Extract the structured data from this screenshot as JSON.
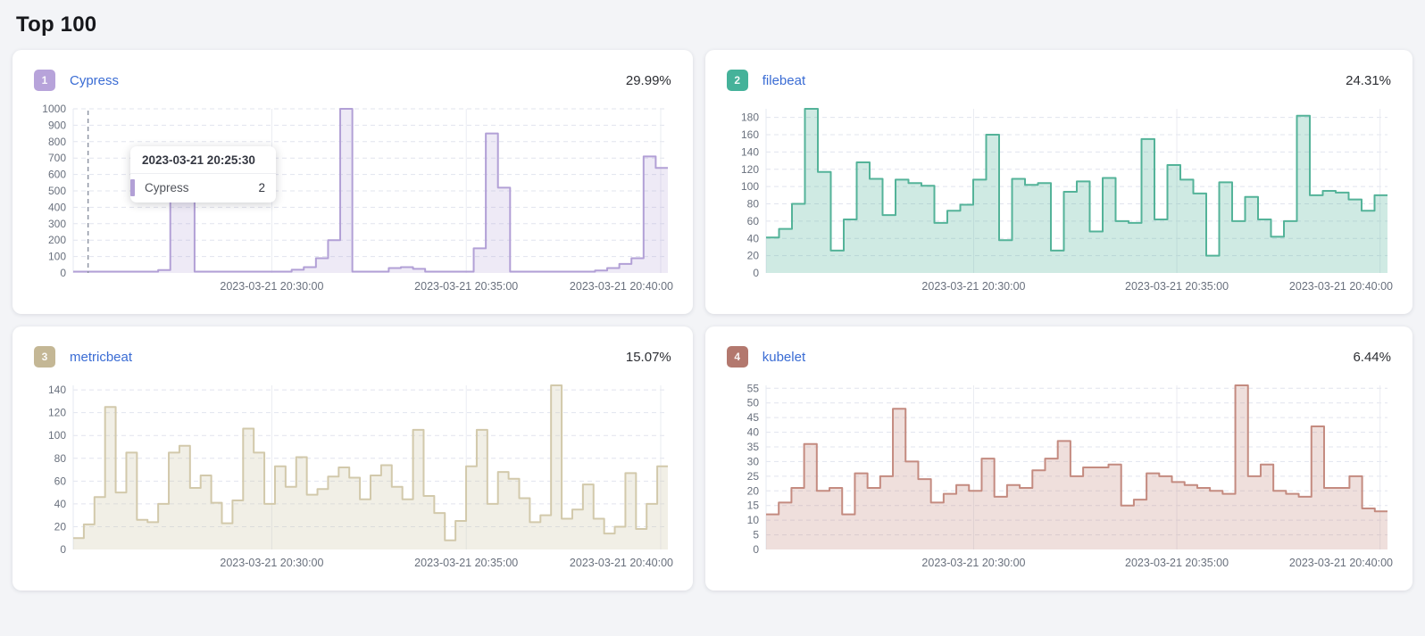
{
  "page": {
    "title": "Top 100",
    "background": "#f3f4f7"
  },
  "x_axis": {
    "labels": [
      "2023-03-21 20:30:00",
      "2023-03-21 20:35:00",
      "2023-03-21 20:40:00"
    ],
    "fractions": [
      0.334,
      0.661,
      0.988
    ],
    "label_color": "#69707d"
  },
  "chart_data": [
    {
      "type": "area",
      "rank": "1",
      "name": "Cypress",
      "percent": "29.99%",
      "badge_color": "#b7a3da",
      "line_color": "#b2a0d6",
      "fill_color": "rgba(178,160,214,0.22)",
      "ylim": [
        0,
        1000
      ],
      "y_ticks": [
        0,
        100,
        200,
        300,
        400,
        500,
        600,
        700,
        800,
        900,
        1000
      ],
      "x_tick_labels": [
        "2023-03-21 20:30:00",
        "2023-03-21 20:35:00",
        "2023-03-21 20:40:00"
      ],
      "values": [
        8,
        8,
        8,
        8,
        8,
        8,
        8,
        18,
        620,
        620,
        8,
        8,
        8,
        8,
        8,
        8,
        8,
        8,
        20,
        35,
        90,
        200,
        1000,
        8,
        8,
        8,
        30,
        35,
        25,
        8,
        8,
        8,
        8,
        150,
        850,
        520,
        8,
        8,
        8,
        8,
        8,
        8,
        8,
        15,
        30,
        55,
        90,
        710,
        640
      ],
      "crosshair_fraction": 0.025,
      "tooltip": {
        "time": "2023-03-21 20:25:30",
        "series": "Cypress",
        "value": "2"
      }
    },
    {
      "type": "area",
      "rank": "2",
      "name": "filebeat",
      "percent": "24.31%",
      "badge_color": "#45b29a",
      "line_color": "#54b399",
      "fill_color": "rgba(84,179,153,0.28)",
      "ylim": [
        0,
        190
      ],
      "y_ticks": [
        0,
        20,
        40,
        60,
        80,
        100,
        120,
        140,
        160,
        180
      ],
      "x_tick_labels": [
        "2023-03-21 20:30:00",
        "2023-03-21 20:35:00",
        "2023-03-21 20:40:00"
      ],
      "values": [
        41,
        51,
        80,
        190,
        117,
        26,
        62,
        128,
        109,
        67,
        108,
        104,
        101,
        58,
        72,
        79,
        108,
        160,
        38,
        109,
        102,
        104,
        26,
        94,
        106,
        48,
        110,
        60,
        58,
        155,
        62,
        125,
        108,
        92,
        20,
        105,
        60,
        88,
        62,
        42,
        60,
        182,
        90,
        95,
        93,
        85,
        72,
        90
      ],
      "crosshair_fraction": null,
      "tooltip": null
    },
    {
      "type": "area",
      "rank": "3",
      "name": "metricbeat",
      "percent": "15.07%",
      "badge_color": "#c4b795",
      "line_color": "#d2c9ab",
      "fill_color": "rgba(210,201,171,0.30)",
      "ylim": [
        0,
        144
      ],
      "y_ticks": [
        0,
        20,
        40,
        60,
        80,
        100,
        120,
        140
      ],
      "x_tick_labels": [
        "2023-03-21 20:30:00",
        "2023-03-21 20:35:00",
        "2023-03-21 20:40:00"
      ],
      "values": [
        10,
        22,
        46,
        125,
        50,
        85,
        26,
        24,
        40,
        85,
        91,
        54,
        65,
        41,
        23,
        43,
        106,
        85,
        40,
        73,
        55,
        81,
        48,
        53,
        64,
        72,
        63,
        44,
        65,
        74,
        55,
        44,
        105,
        47,
        32,
        8,
        25,
        73,
        105,
        40,
        68,
        62,
        45,
        24,
        30,
        144,
        27,
        35,
        57,
        27,
        14,
        20,
        67,
        18,
        40,
        73
      ],
      "crosshair_fraction": null,
      "tooltip": null
    },
    {
      "type": "area",
      "rank": "4",
      "name": "kubelet",
      "percent": "6.44%",
      "badge_color": "#b3786e",
      "line_color": "#c48b80",
      "fill_color": "rgba(196,139,128,0.28)",
      "ylim": [
        0,
        56
      ],
      "y_ticks": [
        0,
        5,
        10,
        15,
        20,
        25,
        30,
        35,
        40,
        45,
        50,
        55
      ],
      "x_tick_labels": [
        "2023-03-21 20:30:00",
        "2023-03-21 20:35:00",
        "2023-03-21 20:40:00"
      ],
      "values": [
        12,
        16,
        21,
        36,
        20,
        21,
        12,
        26,
        21,
        25,
        48,
        30,
        24,
        16,
        19,
        22,
        20,
        31,
        18,
        22,
        21,
        27,
        31,
        37,
        25,
        28,
        28,
        29,
        15,
        17,
        26,
        25,
        23,
        22,
        21,
        20,
        19,
        56,
        25,
        29,
        20,
        19,
        18,
        42,
        21,
        21,
        25,
        14,
        13
      ],
      "crosshair_fraction": null,
      "tooltip": null
    }
  ]
}
